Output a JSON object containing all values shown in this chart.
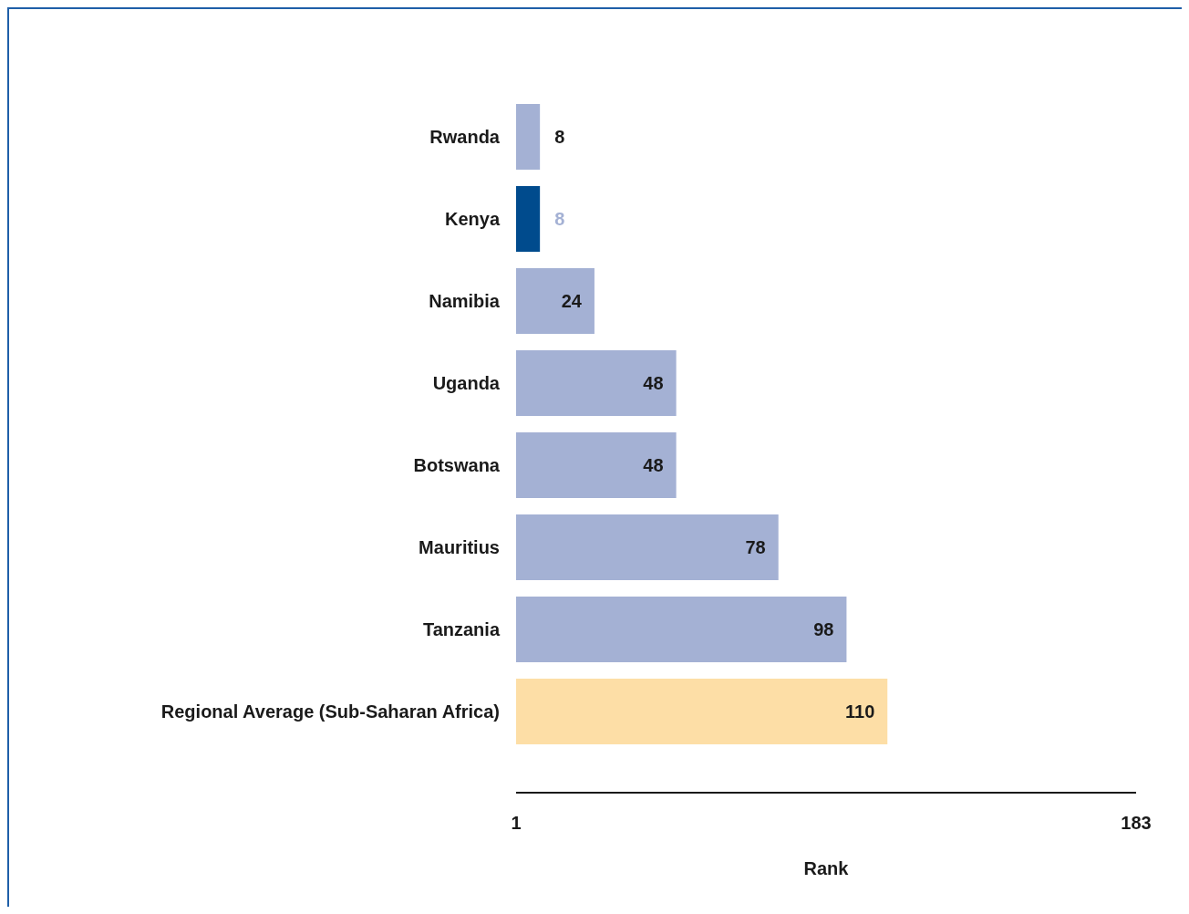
{
  "chart_data": {
    "type": "bar",
    "orientation": "horizontal",
    "categories": [
      "Rwanda",
      "Kenya",
      "Namibia",
      "Uganda",
      "Botswana",
      "Mauritius",
      "Tanzania",
      "Regional Average (Sub-Saharan Africa)"
    ],
    "values": [
      8,
      8,
      24,
      48,
      48,
      78,
      98,
      110
    ],
    "colors": [
      "#a4b1d4",
      "#004b8d",
      "#a4b1d4",
      "#a4b1d4",
      "#a4b1d4",
      "#a4b1d4",
      "#a4b1d4",
      "#fddea6"
    ],
    "xlim": [
      1,
      183
    ],
    "xticks": [
      1,
      183
    ],
    "xlabel": "Rank",
    "data_labels": true
  }
}
